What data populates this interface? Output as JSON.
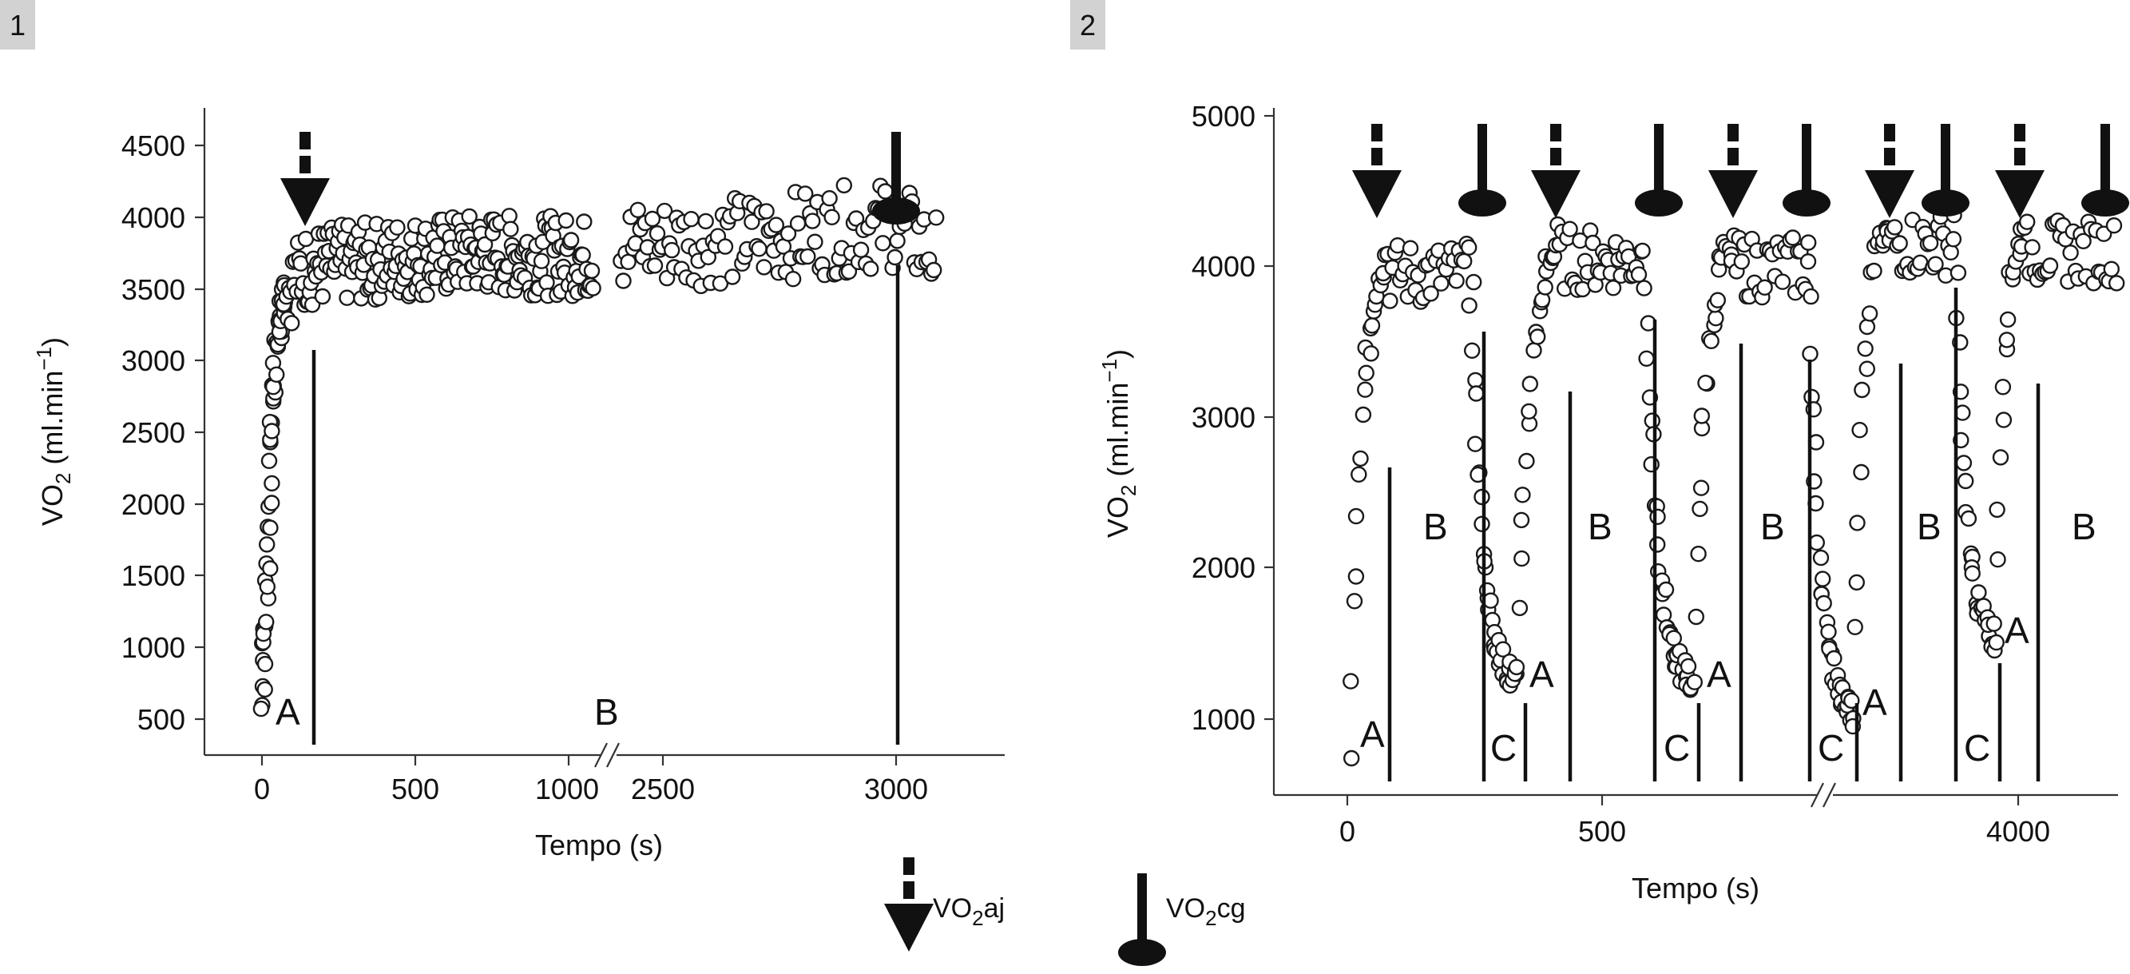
{
  "chart_data": [
    {
      "panel": "1",
      "type": "scatter",
      "xlabel": "Tempo (s)",
      "ylabel": "VO2 (ml.min-1)",
      "x_ticks": [
        "0",
        "500",
        "1000",
        "2500",
        "3000"
      ],
      "y_ticks": [
        "500",
        "1000",
        "1500",
        "2000",
        "2500",
        "3000",
        "3500",
        "4000",
        "4500"
      ],
      "ylim": [
        400,
        4700
      ],
      "x_axis_break": "between 1000 and 2500",
      "phase_labels": [
        "A",
        "B"
      ],
      "phase_boundaries_s": [
        170,
        3010
      ],
      "markers": [
        {
          "type": "VO2aj",
          "x": 150,
          "y": 4400
        },
        {
          "type": "VO2cg",
          "x": 3010,
          "y": 4400
        }
      ],
      "series": [
        {
          "type": "line-envelope",
          "points": [
            {
              "x": 0,
              "y": 600
            },
            {
              "x": 5,
              "y": 900
            },
            {
              "x": 15,
              "y": 1300
            },
            {
              "x": 30,
              "y": 2500
            },
            {
              "x": 50,
              "y": 3200
            },
            {
              "x": 80,
              "y": 3500
            },
            {
              "x": 150,
              "y": 3650
            },
            {
              "x": 400,
              "y": 3700
            },
            {
              "x": 700,
              "y": 3750
            },
            {
              "x": 1050,
              "y": 3720
            },
            {
              "x": 2400,
              "y": 3800
            },
            {
              "x": 2700,
              "y": 3850
            },
            {
              "x": 3000,
              "y": 3950
            },
            {
              "x": 3100,
              "y": 3700
            }
          ]
        }
      ]
    },
    {
      "panel": "2",
      "type": "scatter",
      "xlabel": "Tempo (s)",
      "ylabel": "VO2 (ml.min-1)",
      "x_ticks": [
        "0",
        "500",
        "4000"
      ],
      "y_ticks": [
        "1000",
        "2000",
        "3000",
        "4000",
        "5000"
      ],
      "ylim": [
        500,
        5000
      ],
      "x_axis_break": "between 500 and 4000",
      "phase_labels": [
        "A",
        "B",
        "C"
      ],
      "bouts": [
        {
          "start_y": 850,
          "peak_y": 4100,
          "end_y": 1250
        },
        {
          "start_y": 1250,
          "peak_y": 4200,
          "end_y": 1250
        },
        {
          "start_y": 1250,
          "peak_y": 4150,
          "end_y": 1050
        },
        {
          "start_y": 1050,
          "peak_y": 4300,
          "end_y": 1550
        },
        {
          "start_y": 1550,
          "peak_y": 4250,
          "end_y": 4150
        }
      ]
    }
  ],
  "legend": {
    "vo2aj": {
      "prefix": "VO",
      "sub": "2",
      "suffix": "aj"
    },
    "vo2cg": {
      "prefix": "VO",
      "sub": "2",
      "suffix": "cg"
    }
  },
  "ylabel_parts": {
    "pre": "VO",
    "sub": "2",
    "mid": " (ml.min",
    "sup": "−1",
    "post": ")"
  }
}
